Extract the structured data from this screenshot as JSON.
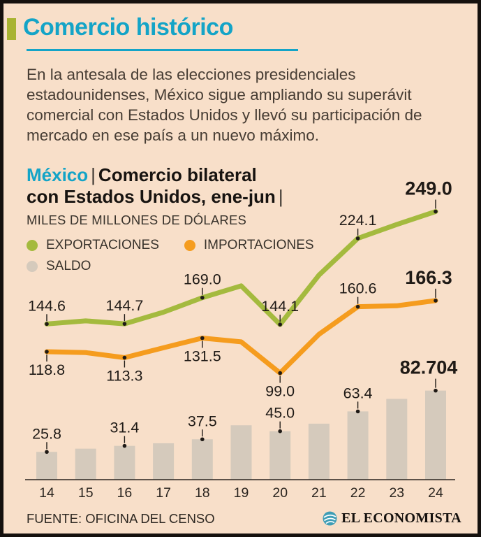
{
  "header": {
    "title": "Comercio histórico",
    "accent_color": "#14a4c7",
    "bullet_color": "#a9b331"
  },
  "intro": {
    "text": "En la antesala de las elecciones presidenciales estadounidenses, México sigue ampliando su superávit comercial con Estados Unidos y llevó su participación de mercado en ese país a un nuevo máximo."
  },
  "chart_header": {
    "region": "México",
    "divider": "|",
    "title_line1": "Comercio bilateral",
    "title_line2": "con Estados Unidos, ene-jun",
    "units": "MILES DE MILLONES DE DÓLARES"
  },
  "chart_data": {
    "type": "line+bar",
    "title": "México | Comercio bilateral con Estados Unidos, ene-jun",
    "ylabel": "MILES DE MILLONES DE DÓLARES",
    "categories": [
      "14",
      "15",
      "16",
      "17",
      "18",
      "19",
      "20",
      "21",
      "22",
      "23",
      "24"
    ],
    "grid": false,
    "legend_position": "top-left",
    "series": [
      {
        "name": "EXPORTACIONES",
        "type": "line",
        "color": "#a4ba3e",
        "values": [
          144.6,
          147.5,
          144.7,
          155.5,
          169.0,
          180.0,
          144.1,
          190.0,
          224.1,
          237.0,
          249.0
        ],
        "labels": [
          {
            "index": 0,
            "text": "144.6",
            "position": "above"
          },
          {
            "index": 2,
            "text": "144.7",
            "position": "above"
          },
          {
            "index": 4,
            "text": "169.0",
            "position": "above"
          },
          {
            "index": 6,
            "text": "144.1",
            "position": "above"
          },
          {
            "index": 8,
            "text": "224.1",
            "position": "above"
          },
          {
            "index": 10,
            "text": "249.0",
            "position": "above",
            "emphasis": true
          }
        ]
      },
      {
        "name": "IMPORTACIONES",
        "type": "line",
        "color": "#f59c1e",
        "values": [
          118.8,
          118.0,
          113.3,
          122.5,
          131.5,
          128.0,
          99.0,
          135.0,
          160.6,
          161.5,
          166.3
        ],
        "labels": [
          {
            "index": 0,
            "text": "118.8",
            "position": "below"
          },
          {
            "index": 2,
            "text": "113.3",
            "position": "below"
          },
          {
            "index": 4,
            "text": "131.5",
            "position": "below"
          },
          {
            "index": 6,
            "text": "99.0",
            "position": "below"
          },
          {
            "index": 8,
            "text": "160.6",
            "position": "above"
          },
          {
            "index": 10,
            "text": "166.3",
            "position": "above",
            "emphasis": true
          }
        ]
      },
      {
        "name": "SALDO",
        "type": "bar",
        "color": "#d5cabc",
        "values": [
          25.8,
          28.8,
          31.4,
          33.8,
          37.5,
          50.5,
          45.0,
          52.0,
          63.4,
          75.0,
          82.704
        ],
        "labels": [
          {
            "index": 0,
            "text": "25.8",
            "position": "above"
          },
          {
            "index": 2,
            "text": "31.4",
            "position": "above"
          },
          {
            "index": 4,
            "text": "37.5",
            "position": "above"
          },
          {
            "index": 6,
            "text": "45.0",
            "position": "above"
          },
          {
            "index": 8,
            "text": "63.4",
            "position": "above"
          },
          {
            "index": 10,
            "text": "82.704",
            "position": "above",
            "emphasis": true
          }
        ]
      }
    ]
  },
  "footer": {
    "source": "FUENTE: OFICINA DEL CENSO",
    "brand": "EL ECONOMISTA",
    "brand_color": "#3f9db5"
  }
}
